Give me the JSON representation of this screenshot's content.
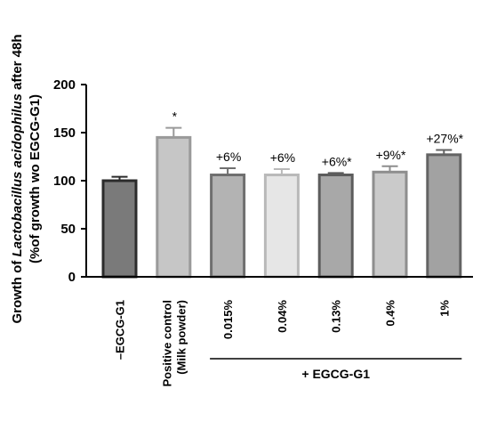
{
  "chart_data": {
    "type": "bar",
    "ylabel": "Growth of Lactobacillus acidophilus after 48h",
    "ylabel_parts": [
      {
        "text": "Growth of ",
        "italic": false
      },
      {
        "text": "Lactobacillus acidophilus",
        "italic": true
      },
      {
        "text": " after 48h",
        "italic": false
      }
    ],
    "ylabel2": "(%of growth wo EGCG-G1)",
    "ylim": [
      0,
      200
    ],
    "yticks": [
      0,
      50,
      100,
      150,
      200
    ],
    "grid": false,
    "categories": [
      {
        "label": "–EGCG-G1",
        "line2": ""
      },
      {
        "label": "Positive control",
        "line2": "(Milk powder)"
      },
      {
        "label": "0.015%",
        "line2": ""
      },
      {
        "label": "0.04%",
        "line2": ""
      },
      {
        "label": "0.13%",
        "line2": ""
      },
      {
        "label": "0.4%",
        "line2": ""
      },
      {
        "label": "1%",
        "line2": ""
      }
    ],
    "values": [
      100,
      145,
      106,
      106,
      106,
      109,
      127
    ],
    "errors": [
      4,
      10,
      7,
      6,
      2,
      6,
      5
    ],
    "fill_colors": [
      "#7a7a7a",
      "#c6c6c6",
      "#b3b3b3",
      "#e6e6e6",
      "#a8a8a8",
      "#cacaca",
      "#a2a2a2"
    ],
    "edge_colors": [
      "#2b2b2b",
      "#9a9a9a",
      "#6f6f6f",
      "#b9b9b9",
      "#5c5c5c",
      "#8e8e8e",
      "#636363"
    ],
    "annotations": [
      "",
      "*",
      "+6%",
      "+6%",
      "+6%*",
      "+9%*",
      "+27%*"
    ],
    "group_label": "+ EGCG-G1",
    "group_span": [
      2,
      6
    ]
  }
}
